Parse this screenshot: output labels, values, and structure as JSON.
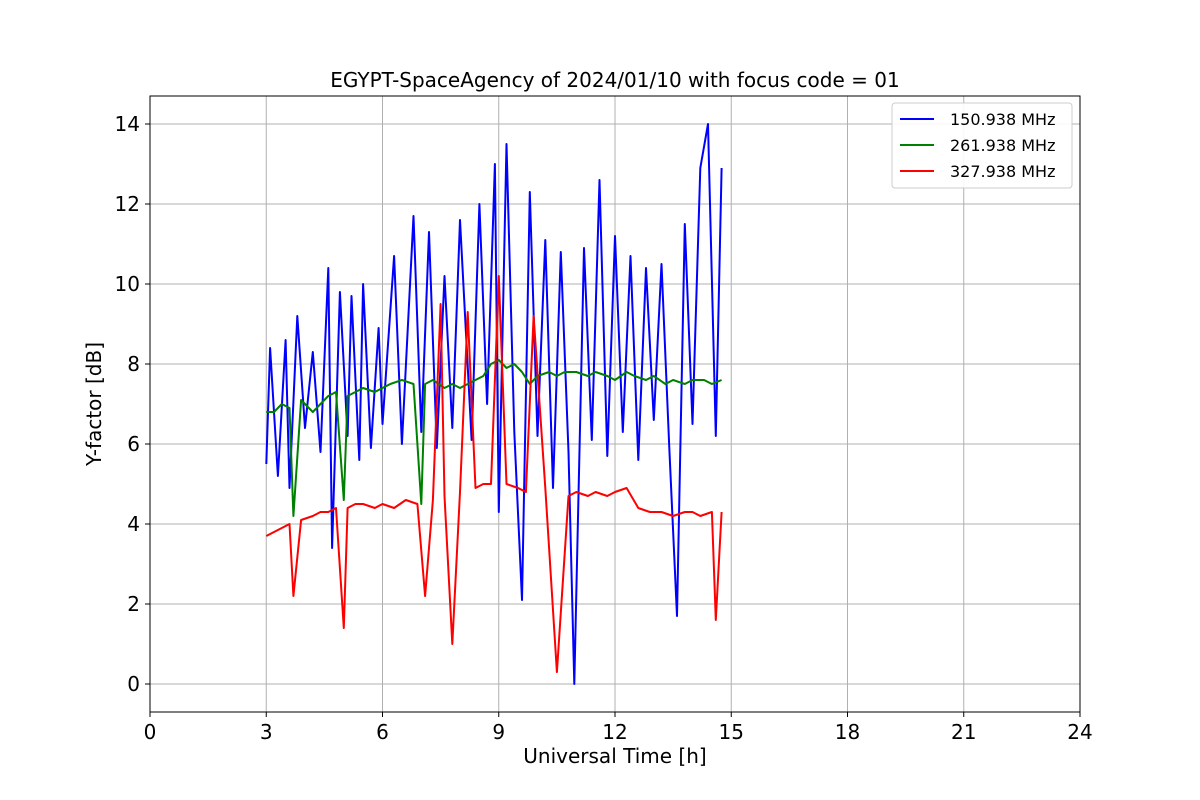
{
  "chart_data": {
    "type": "line",
    "title": "EGYPT-SpaceAgency of 2024/01/10 with focus code = 01",
    "xlabel": "Universal Time [h]",
    "ylabel": "Y-factor [dB]",
    "xlim": [
      0,
      24
    ],
    "ylim": [
      -0.7,
      14.7
    ],
    "xticks": [
      0,
      3,
      6,
      9,
      12,
      15,
      18,
      21,
      24
    ],
    "yticks": [
      0,
      2,
      4,
      6,
      8,
      10,
      12,
      14
    ],
    "grid": true,
    "legend_position": "top-right",
    "series": [
      {
        "name": "150.938 MHz",
        "color": "#0000ff",
        "x": [
          3.0,
          3.1,
          3.3,
          3.5,
          3.6,
          3.8,
          4.0,
          4.2,
          4.4,
          4.6,
          4.7,
          4.9,
          5.1,
          5.2,
          5.4,
          5.5,
          5.7,
          5.9,
          6.0,
          6.3,
          6.5,
          6.8,
          7.0,
          7.2,
          7.4,
          7.6,
          7.8,
          8.0,
          8.3,
          8.5,
          8.7,
          8.9,
          9.0,
          9.2,
          9.4,
          9.6,
          9.8,
          10.0,
          10.2,
          10.4,
          10.6,
          10.8,
          10.95,
          11.2,
          11.4,
          11.6,
          11.8,
          12.0,
          12.2,
          12.4,
          12.6,
          12.8,
          13.0,
          13.2,
          13.4,
          13.6,
          13.8,
          14.0,
          14.2,
          14.4,
          14.6,
          14.75
        ],
        "y": [
          5.5,
          8.4,
          5.2,
          8.6,
          4.9,
          9.2,
          6.4,
          8.3,
          5.8,
          10.4,
          3.4,
          9.8,
          6.2,
          9.7,
          5.6,
          10.0,
          5.9,
          8.9,
          6.5,
          10.7,
          6.0,
          11.7,
          6.3,
          11.3,
          5.9,
          10.2,
          6.4,
          11.6,
          6.1,
          12.0,
          7.0,
          13.0,
          4.3,
          13.5,
          6.3,
          2.1,
          12.3,
          6.2,
          11.1,
          4.9,
          10.8,
          5.8,
          0.0,
          10.9,
          6.1,
          12.6,
          5.7,
          11.2,
          6.3,
          10.7,
          5.6,
          10.4,
          6.6,
          10.5,
          5.9,
          1.7,
          11.5,
          6.5,
          12.9,
          14.0,
          6.2,
          12.9
        ]
      },
      {
        "name": "261.938 MHz",
        "color": "#008000",
        "x": [
          3.0,
          3.2,
          3.4,
          3.6,
          3.7,
          3.9,
          4.2,
          4.4,
          4.6,
          4.8,
          5.0,
          5.1,
          5.3,
          5.5,
          5.8,
          6.0,
          6.2,
          6.5,
          6.8,
          7.0,
          7.1,
          7.3,
          7.6,
          7.8,
          8.0,
          8.2,
          8.4,
          8.6,
          8.8,
          9.0,
          9.2,
          9.4,
          9.6,
          9.8,
          10.0,
          10.3,
          10.5,
          10.7,
          11.0,
          11.3,
          11.5,
          11.8,
          12.0,
          12.3,
          12.5,
          12.8,
          13.0,
          13.3,
          13.5,
          13.8,
          14.0,
          14.3,
          14.5,
          14.75
        ],
        "y": [
          6.8,
          6.8,
          7.0,
          6.9,
          4.2,
          7.1,
          6.8,
          7.0,
          7.2,
          7.3,
          4.6,
          7.2,
          7.3,
          7.4,
          7.3,
          7.4,
          7.5,
          7.6,
          7.5,
          4.5,
          7.5,
          7.6,
          7.4,
          7.5,
          7.4,
          7.5,
          7.6,
          7.7,
          8.0,
          8.1,
          7.9,
          8.0,
          7.8,
          7.5,
          7.7,
          7.8,
          7.7,
          7.8,
          7.8,
          7.7,
          7.8,
          7.7,
          7.6,
          7.8,
          7.7,
          7.6,
          7.7,
          7.5,
          7.6,
          7.5,
          7.6,
          7.6,
          7.5,
          7.6
        ]
      },
      {
        "name": "327.938 MHz",
        "color": "#ff0000",
        "x": [
          3.0,
          3.2,
          3.4,
          3.6,
          3.7,
          3.9,
          4.2,
          4.4,
          4.6,
          4.8,
          5.0,
          5.1,
          5.3,
          5.5,
          5.8,
          6.0,
          6.3,
          6.6,
          6.9,
          7.1,
          7.3,
          7.5,
          7.6,
          7.8,
          8.0,
          8.2,
          8.4,
          8.6,
          8.8,
          9.0,
          9.2,
          9.5,
          9.7,
          9.9,
          10.2,
          10.5,
          10.8,
          11.0,
          11.3,
          11.5,
          11.8,
          12.0,
          12.3,
          12.6,
          12.9,
          13.2,
          13.5,
          13.8,
          14.0,
          14.2,
          14.5,
          14.6,
          14.75
        ],
        "y": [
          3.7,
          3.8,
          3.9,
          4.0,
          2.2,
          4.1,
          4.2,
          4.3,
          4.3,
          4.4,
          1.4,
          4.4,
          4.5,
          4.5,
          4.4,
          4.5,
          4.4,
          4.6,
          4.5,
          2.2,
          4.6,
          9.5,
          4.7,
          1.0,
          4.8,
          9.3,
          4.9,
          5.0,
          5.0,
          10.2,
          5.0,
          4.9,
          4.8,
          9.2,
          4.9,
          0.3,
          4.7,
          4.8,
          4.7,
          4.8,
          4.7,
          4.8,
          4.9,
          4.4,
          4.3,
          4.3,
          4.2,
          4.3,
          4.3,
          4.2,
          4.3,
          1.6,
          4.3
        ]
      }
    ]
  }
}
